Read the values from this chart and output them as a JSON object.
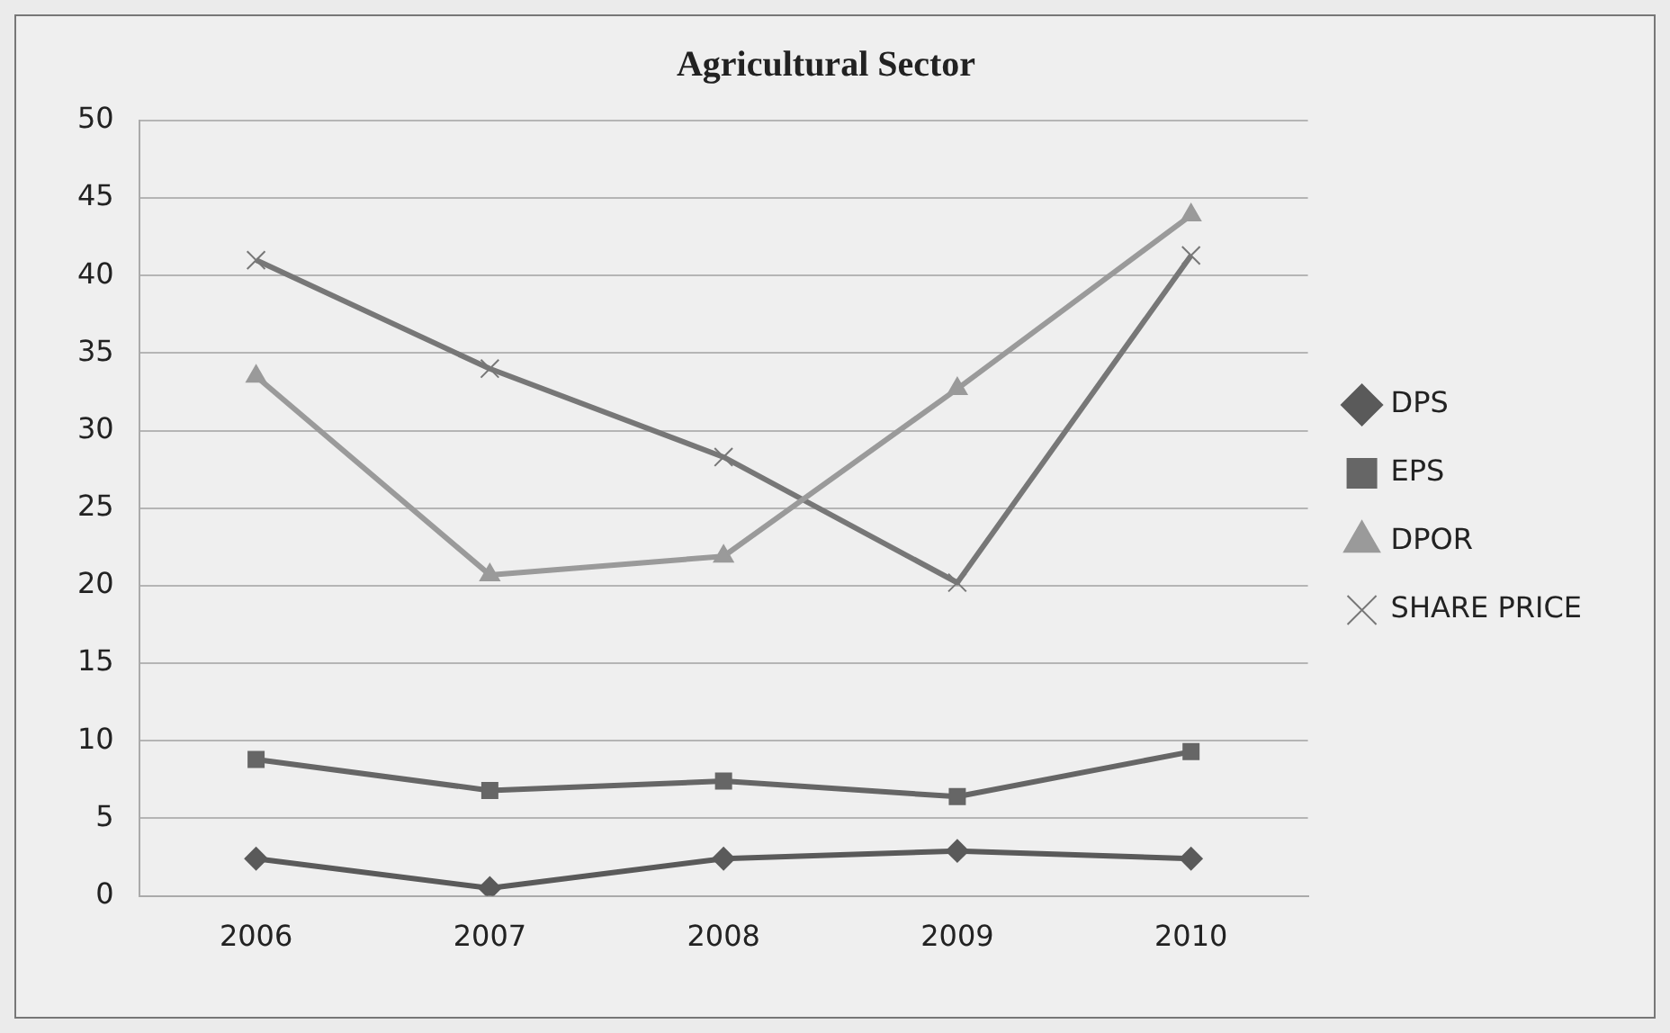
{
  "chart_data": {
    "type": "line",
    "title": "Agricultural Sector",
    "categories": [
      "2006",
      "2007",
      "2008",
      "2009",
      "2010"
    ],
    "series": [
      {
        "name": "DPS",
        "color": "#5a5a5a",
        "marker": "diamond",
        "values": [
          2.4,
          0.5,
          2.4,
          2.9,
          2.4
        ]
      },
      {
        "name": "EPS",
        "color": "#666666",
        "marker": "square",
        "values": [
          8.8,
          6.8,
          7.4,
          6.4,
          9.3
        ]
      },
      {
        "name": "DPOR",
        "color": "#9a9a9a",
        "marker": "triangle",
        "values": [
          33.5,
          20.7,
          21.9,
          32.7,
          43.9
        ]
      },
      {
        "name": "SHARE PRICE",
        "color": "#777777",
        "marker": "cross",
        "values": [
          41,
          34,
          28.3,
          20.2,
          41.3
        ]
      }
    ],
    "ylim": [
      0,
      50
    ],
    "yticks": [
      0,
      5,
      10,
      15,
      20,
      25,
      30,
      35,
      40,
      45,
      50
    ],
    "grid": "y",
    "legend": "right",
    "line_style": "solid"
  }
}
